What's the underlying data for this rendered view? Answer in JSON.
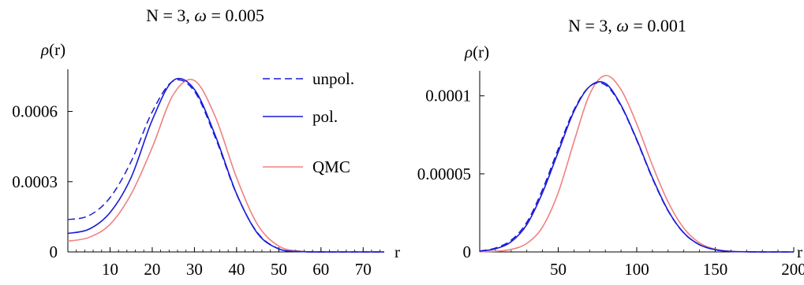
{
  "chart_data": [
    {
      "type": "line",
      "title": "N = 3, ω = 0.005",
      "title_parts": {
        "prefix": "N = 3, ",
        "symbol": "ω",
        "suffix": " = 0.005"
      },
      "ylabel": "ρ(r)",
      "ylabel_parts": {
        "symbol": "ρ",
        "suffix": "(r)"
      },
      "xlabel": "r",
      "xlim": [
        0,
        75
      ],
      "ylim": [
        0,
        0.00078
      ],
      "x_ticks": [
        "10",
        "20",
        "30",
        "40",
        "50",
        "60",
        "70"
      ],
      "x_tick_values": [
        10,
        20,
        30,
        40,
        50,
        60,
        70
      ],
      "y_ticks": [
        "0",
        "0.0003",
        "0.0006"
      ],
      "y_tick_values": [
        0,
        0.0003,
        0.0006
      ],
      "legend_position": "top-right",
      "series": [
        {
          "name": "unpol.",
          "color": "#1a1ad6",
          "style": "dashed",
          "x": [
            0,
            5,
            10,
            15,
            20,
            25,
            30,
            35,
            40,
            45,
            50,
            55,
            60,
            65,
            70,
            75
          ],
          "y": [
            0.000138,
            0.000155,
            0.000232,
            0.000386,
            0.000598,
            0.00073,
            0.000686,
            0.000486,
            0.000246,
            8.08e-05,
            1.33e-05,
            1.6e-06,
            1e-07,
            0,
            0,
            0
          ]
        },
        {
          "name": "pol.",
          "color": "#1a1ad6",
          "style": "solid",
          "x": [
            0,
            5,
            10,
            15,
            20,
            25,
            30,
            35,
            40,
            45,
            50,
            55,
            60,
            65,
            70,
            75
          ],
          "y": [
            7.9e-05,
            9.7e-05,
            0.000168,
            0.000318,
            0.000563,
            0.000732,
            0.000694,
            0.000495,
            0.000248,
            7.83e-05,
            1.29e-05,
            1.5e-06,
            1e-07,
            0,
            0,
            0
          ]
        },
        {
          "name": "QMC",
          "color": "#f08080",
          "style": "solid",
          "x": [
            0,
            5,
            10,
            15,
            20,
            25,
            30,
            35,
            40,
            45,
            50,
            55,
            60,
            65,
            70,
            75
          ],
          "y": [
            4.6e-05,
            6.2e-05,
            0.000118,
            0.000247,
            0.000446,
            0.000672,
            0.000732,
            0.000575,
            0.000317,
            0.000116,
            2.5e-05,
            3.1e-06,
            2e-07,
            0,
            0,
            0
          ]
        }
      ]
    },
    {
      "type": "line",
      "title": "N = 3, ω = 0.001",
      "title_parts": {
        "prefix": "N = 3, ",
        "symbol": "ω",
        "suffix": " = 0.001"
      },
      "ylabel": "ρ(r)",
      "ylabel_parts": {
        "symbol": "ρ",
        "suffix": "(r)"
      },
      "xlabel": "r",
      "xlim": [
        0,
        200
      ],
      "ylim": [
        0,
        0.000116
      ],
      "x_ticks": [
        "50",
        "100",
        "150",
        "200"
      ],
      "x_tick_values": [
        50,
        100,
        150,
        200
      ],
      "y_ticks": [
        "0",
        "0.00005",
        "0.0001"
      ],
      "y_tick_values": [
        0,
        5e-05,
        0.0001
      ],
      "series": [
        {
          "name": "unpol.",
          "color": "#1a1ad6",
          "style": "dashed",
          "x": [
            0,
            10,
            20,
            30,
            40,
            50,
            60,
            70,
            80,
            90,
            100,
            110,
            120,
            130,
            140,
            150,
            160,
            170,
            180,
            190,
            200
          ],
          "y": [
            6e-07,
            2.5e-06,
            7.5e-06,
            1.9e-05,
            4e-05,
            6.6e-05,
            9.1e-05,
            0.000106,
            0.000107,
            9.35e-05,
            7.15e-05,
            4.7e-05,
            2.62e-05,
            1.21e-05,
            4.6e-06,
            1.4e-06,
            3e-07,
            1e-07,
            0,
            0,
            0
          ]
        },
        {
          "name": "pol.",
          "color": "#1a1ad6",
          "style": "solid",
          "x": [
            0,
            10,
            20,
            30,
            40,
            50,
            60,
            70,
            80,
            90,
            100,
            110,
            120,
            130,
            140,
            150,
            160,
            170,
            180,
            190,
            200
          ],
          "y": [
            5e-07,
            2e-06,
            6.5e-06,
            1.75e-05,
            3.8e-05,
            6.4e-05,
            9e-05,
            0.000106,
            0.000108,
            9.4e-05,
            7.2e-05,
            4.75e-05,
            2.65e-05,
            1.22e-05,
            4.6e-06,
            1.4e-06,
            3e-07,
            1e-07,
            0,
            0,
            0
          ]
        },
        {
          "name": "QMC",
          "color": "#f08080",
          "style": "solid",
          "x": [
            0,
            10,
            20,
            30,
            40,
            50,
            60,
            70,
            80,
            90,
            100,
            110,
            120,
            130,
            140,
            150,
            160,
            170,
            180,
            190,
            200
          ],
          "y": [
            1e-07,
            4e-07,
            1.6e-06,
            5.5e-06,
            1.6e-05,
            3.8e-05,
            7.05e-05,
            0.000101,
            0.000113,
            0.000104,
            8.2e-05,
            5.55e-05,
            3.2e-05,
            1.52e-05,
            5.8e-06,
            1.8e-06,
            4e-07,
            1e-07,
            0,
            0,
            0
          ]
        }
      ]
    }
  ]
}
